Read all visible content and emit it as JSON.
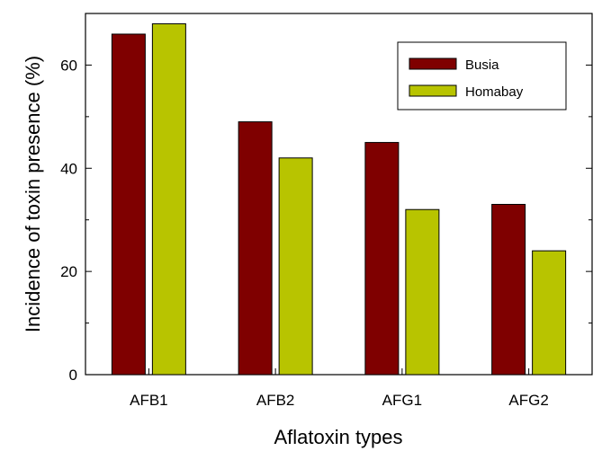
{
  "chart_data": {
    "type": "bar",
    "xlabel": "Aflatoxin types",
    "ylabel": "Incidence of toxin presence (%)",
    "categories": [
      "AFB1",
      "AFB2",
      "AFG1",
      "AFG2"
    ],
    "series": [
      {
        "name": "Busia",
        "color": "#7f0000",
        "values": [
          66,
          49,
          45,
          33
        ]
      },
      {
        "name": "Homabay",
        "color": "#b8c400",
        "values": [
          68,
          42,
          32,
          24
        ]
      }
    ],
    "ylim": [
      0,
      70
    ],
    "yticks": [
      "0",
      "20",
      "40",
      "60"
    ],
    "grid": false,
    "legend": "top-right",
    "frame": "box"
  }
}
